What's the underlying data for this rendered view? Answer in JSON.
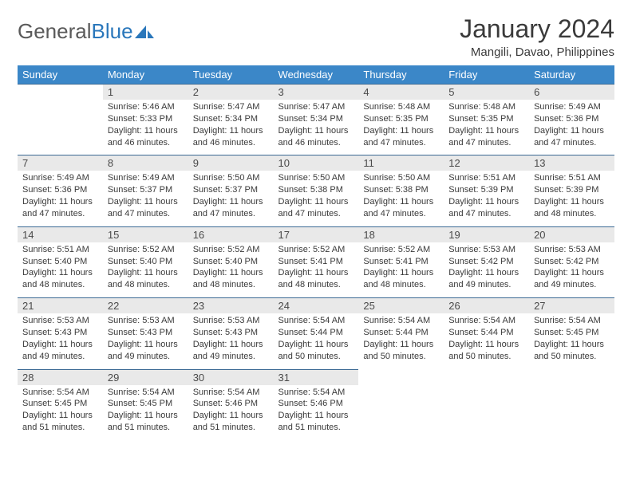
{
  "logo": {
    "text1": "General",
    "text2": "Blue"
  },
  "title": "January 2024",
  "location": "Mangili, Davao, Philippines",
  "colors": {
    "header_bg": "#3b87c8",
    "header_fg": "#ffffff",
    "daynum_bg": "#e9e9e9",
    "rule": "#3b6a94",
    "logo_blue": "#2a77bb"
  },
  "day_headers": [
    "Sunday",
    "Monday",
    "Tuesday",
    "Wednesday",
    "Thursday",
    "Friday",
    "Saturday"
  ],
  "weeks": [
    [
      {
        "n": "",
        "sunrise": "",
        "sunset": "",
        "daylight": ""
      },
      {
        "n": "1",
        "sunrise": "Sunrise: 5:46 AM",
        "sunset": "Sunset: 5:33 PM",
        "daylight": "Daylight: 11 hours and 46 minutes."
      },
      {
        "n": "2",
        "sunrise": "Sunrise: 5:47 AM",
        "sunset": "Sunset: 5:34 PM",
        "daylight": "Daylight: 11 hours and 46 minutes."
      },
      {
        "n": "3",
        "sunrise": "Sunrise: 5:47 AM",
        "sunset": "Sunset: 5:34 PM",
        "daylight": "Daylight: 11 hours and 46 minutes."
      },
      {
        "n": "4",
        "sunrise": "Sunrise: 5:48 AM",
        "sunset": "Sunset: 5:35 PM",
        "daylight": "Daylight: 11 hours and 47 minutes."
      },
      {
        "n": "5",
        "sunrise": "Sunrise: 5:48 AM",
        "sunset": "Sunset: 5:35 PM",
        "daylight": "Daylight: 11 hours and 47 minutes."
      },
      {
        "n": "6",
        "sunrise": "Sunrise: 5:49 AM",
        "sunset": "Sunset: 5:36 PM",
        "daylight": "Daylight: 11 hours and 47 minutes."
      }
    ],
    [
      {
        "n": "7",
        "sunrise": "Sunrise: 5:49 AM",
        "sunset": "Sunset: 5:36 PM",
        "daylight": "Daylight: 11 hours and 47 minutes."
      },
      {
        "n": "8",
        "sunrise": "Sunrise: 5:49 AM",
        "sunset": "Sunset: 5:37 PM",
        "daylight": "Daylight: 11 hours and 47 minutes."
      },
      {
        "n": "9",
        "sunrise": "Sunrise: 5:50 AM",
        "sunset": "Sunset: 5:37 PM",
        "daylight": "Daylight: 11 hours and 47 minutes."
      },
      {
        "n": "10",
        "sunrise": "Sunrise: 5:50 AM",
        "sunset": "Sunset: 5:38 PM",
        "daylight": "Daylight: 11 hours and 47 minutes."
      },
      {
        "n": "11",
        "sunrise": "Sunrise: 5:50 AM",
        "sunset": "Sunset: 5:38 PM",
        "daylight": "Daylight: 11 hours and 47 minutes."
      },
      {
        "n": "12",
        "sunrise": "Sunrise: 5:51 AM",
        "sunset": "Sunset: 5:39 PM",
        "daylight": "Daylight: 11 hours and 47 minutes."
      },
      {
        "n": "13",
        "sunrise": "Sunrise: 5:51 AM",
        "sunset": "Sunset: 5:39 PM",
        "daylight": "Daylight: 11 hours and 48 minutes."
      }
    ],
    [
      {
        "n": "14",
        "sunrise": "Sunrise: 5:51 AM",
        "sunset": "Sunset: 5:40 PM",
        "daylight": "Daylight: 11 hours and 48 minutes."
      },
      {
        "n": "15",
        "sunrise": "Sunrise: 5:52 AM",
        "sunset": "Sunset: 5:40 PM",
        "daylight": "Daylight: 11 hours and 48 minutes."
      },
      {
        "n": "16",
        "sunrise": "Sunrise: 5:52 AM",
        "sunset": "Sunset: 5:40 PM",
        "daylight": "Daylight: 11 hours and 48 minutes."
      },
      {
        "n": "17",
        "sunrise": "Sunrise: 5:52 AM",
        "sunset": "Sunset: 5:41 PM",
        "daylight": "Daylight: 11 hours and 48 minutes."
      },
      {
        "n": "18",
        "sunrise": "Sunrise: 5:52 AM",
        "sunset": "Sunset: 5:41 PM",
        "daylight": "Daylight: 11 hours and 48 minutes."
      },
      {
        "n": "19",
        "sunrise": "Sunrise: 5:53 AM",
        "sunset": "Sunset: 5:42 PM",
        "daylight": "Daylight: 11 hours and 49 minutes."
      },
      {
        "n": "20",
        "sunrise": "Sunrise: 5:53 AM",
        "sunset": "Sunset: 5:42 PM",
        "daylight": "Daylight: 11 hours and 49 minutes."
      }
    ],
    [
      {
        "n": "21",
        "sunrise": "Sunrise: 5:53 AM",
        "sunset": "Sunset: 5:43 PM",
        "daylight": "Daylight: 11 hours and 49 minutes."
      },
      {
        "n": "22",
        "sunrise": "Sunrise: 5:53 AM",
        "sunset": "Sunset: 5:43 PM",
        "daylight": "Daylight: 11 hours and 49 minutes."
      },
      {
        "n": "23",
        "sunrise": "Sunrise: 5:53 AM",
        "sunset": "Sunset: 5:43 PM",
        "daylight": "Daylight: 11 hours and 49 minutes."
      },
      {
        "n": "24",
        "sunrise": "Sunrise: 5:54 AM",
        "sunset": "Sunset: 5:44 PM",
        "daylight": "Daylight: 11 hours and 50 minutes."
      },
      {
        "n": "25",
        "sunrise": "Sunrise: 5:54 AM",
        "sunset": "Sunset: 5:44 PM",
        "daylight": "Daylight: 11 hours and 50 minutes."
      },
      {
        "n": "26",
        "sunrise": "Sunrise: 5:54 AM",
        "sunset": "Sunset: 5:44 PM",
        "daylight": "Daylight: 11 hours and 50 minutes."
      },
      {
        "n": "27",
        "sunrise": "Sunrise: 5:54 AM",
        "sunset": "Sunset: 5:45 PM",
        "daylight": "Daylight: 11 hours and 50 minutes."
      }
    ],
    [
      {
        "n": "28",
        "sunrise": "Sunrise: 5:54 AM",
        "sunset": "Sunset: 5:45 PM",
        "daylight": "Daylight: 11 hours and 51 minutes."
      },
      {
        "n": "29",
        "sunrise": "Sunrise: 5:54 AM",
        "sunset": "Sunset: 5:45 PM",
        "daylight": "Daylight: 11 hours and 51 minutes."
      },
      {
        "n": "30",
        "sunrise": "Sunrise: 5:54 AM",
        "sunset": "Sunset: 5:46 PM",
        "daylight": "Daylight: 11 hours and 51 minutes."
      },
      {
        "n": "31",
        "sunrise": "Sunrise: 5:54 AM",
        "sunset": "Sunset: 5:46 PM",
        "daylight": "Daylight: 11 hours and 51 minutes."
      },
      {
        "n": "",
        "sunrise": "",
        "sunset": "",
        "daylight": ""
      },
      {
        "n": "",
        "sunrise": "",
        "sunset": "",
        "daylight": ""
      },
      {
        "n": "",
        "sunrise": "",
        "sunset": "",
        "daylight": ""
      }
    ]
  ]
}
